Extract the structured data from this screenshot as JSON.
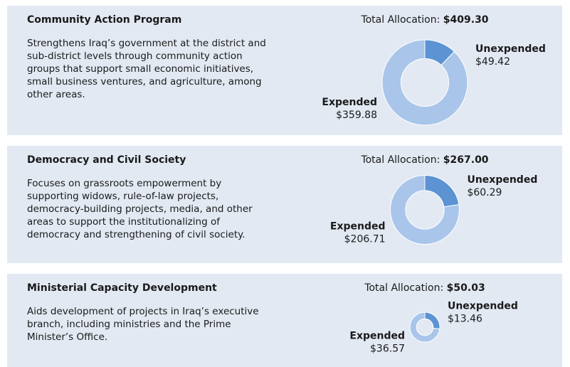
{
  "chart_data": [
    {
      "type": "pie",
      "title": "Community Action Program",
      "description_lines": [
        "Strengthens Iraq’s government at the district and",
        "sub-district levels through community action",
        "groups that support small economic initiatives,",
        "small business ventures, and agriculture, among",
        "other areas."
      ],
      "total_caption": "Total Allocation:",
      "total": 409.3,
      "total_label": "$409.30",
      "categories": [
        "Unexpended",
        "Expended"
      ],
      "values": [
        49.42,
        359.88
      ],
      "value_labels": [
        "$49.42",
        "$359.88"
      ],
      "colors": [
        "#5b93d3",
        "#a9c5ea"
      ]
    },
    {
      "type": "pie",
      "title": "Democracy and Civil Society",
      "description_lines": [
        "Focuses on grassroots empowerment by",
        "supporting widows, rule-of-law projects,",
        "democracy-building projects, media, and other",
        "areas to support the institutionalizing of",
        "democracy and strengthening of civil society."
      ],
      "total_caption": "Total Allocation:",
      "total": 267.0,
      "total_label": "$267.00",
      "categories": [
        "Unexpended",
        "Expended"
      ],
      "values": [
        60.29,
        206.71
      ],
      "value_labels": [
        "$60.29",
        "$206.71"
      ],
      "colors": [
        "#5b93d3",
        "#a9c5ea"
      ]
    },
    {
      "type": "pie",
      "title": "Ministerial Capacity Development",
      "description_lines": [
        "Aids development of projects in Iraq’s executive",
        "branch, including ministries and the Prime",
        "Minister’s Office."
      ],
      "total_caption": "Total Allocation:",
      "total": 50.03,
      "total_label": "$50.03",
      "categories": [
        "Unexpended",
        "Expended"
      ],
      "values": [
        13.46,
        36.57
      ],
      "value_labels": [
        "$13.46",
        "$36.57"
      ],
      "colors": [
        "#5b93d3",
        "#a9c5ea"
      ]
    }
  ]
}
